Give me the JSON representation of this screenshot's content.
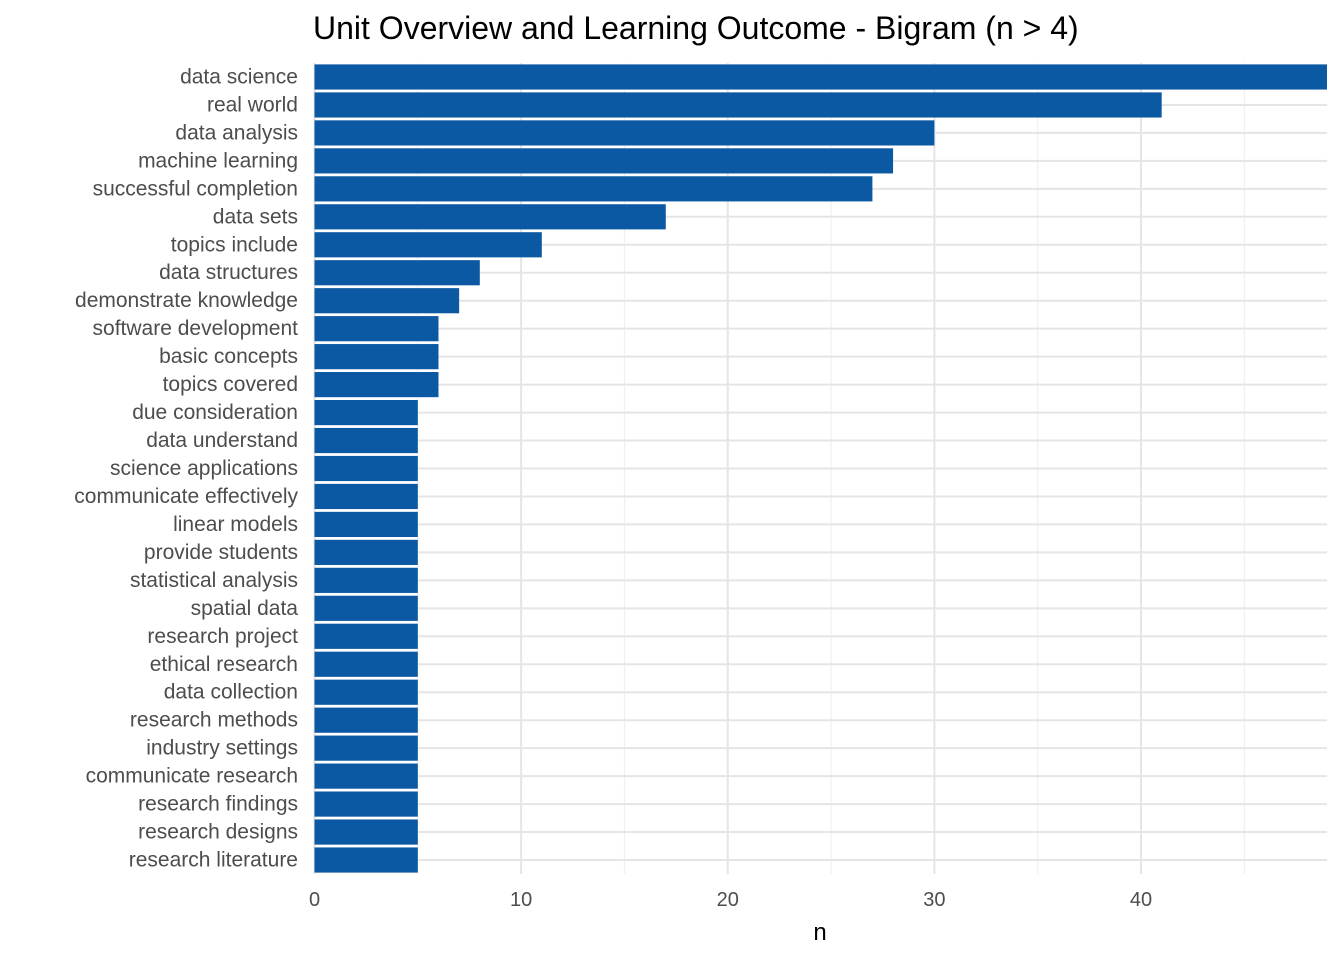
{
  "chart_data": {
    "type": "bar",
    "orientation": "horizontal",
    "title": "Unit Overview and Learning Outcome - Bigram (n > 4)",
    "xlabel": "n",
    "ylabel": "",
    "xlim": [
      0,
      49
    ],
    "x_ticks": [
      0,
      10,
      20,
      30,
      40
    ],
    "grid": true,
    "bar_color": "#0B59A2",
    "categories": [
      "data science",
      "real world",
      "data analysis",
      "machine learning",
      "successful completion",
      "data sets",
      "topics include",
      "data structures",
      "demonstrate knowledge",
      "software development",
      "basic concepts",
      "topics covered",
      "due consideration",
      "data understand",
      "science applications",
      "communicate effectively",
      "linear models",
      "provide students",
      "statistical analysis",
      "spatial data",
      "research project",
      "ethical research",
      "data collection",
      "research methods",
      "industry settings",
      "communicate research",
      "research findings",
      "research designs",
      "research literature"
    ],
    "values": [
      49,
      41,
      30,
      28,
      27,
      17,
      11,
      8,
      7,
      6,
      6,
      6,
      5,
      5,
      5,
      5,
      5,
      5,
      5,
      5,
      5,
      5,
      5,
      5,
      5,
      5,
      5,
      5,
      5
    ]
  },
  "colors": {
    "grid_major": "#E5E5E5",
    "grid_minor": "#F0F0F0",
    "text": "#4D4D4D",
    "title": "#000000"
  }
}
